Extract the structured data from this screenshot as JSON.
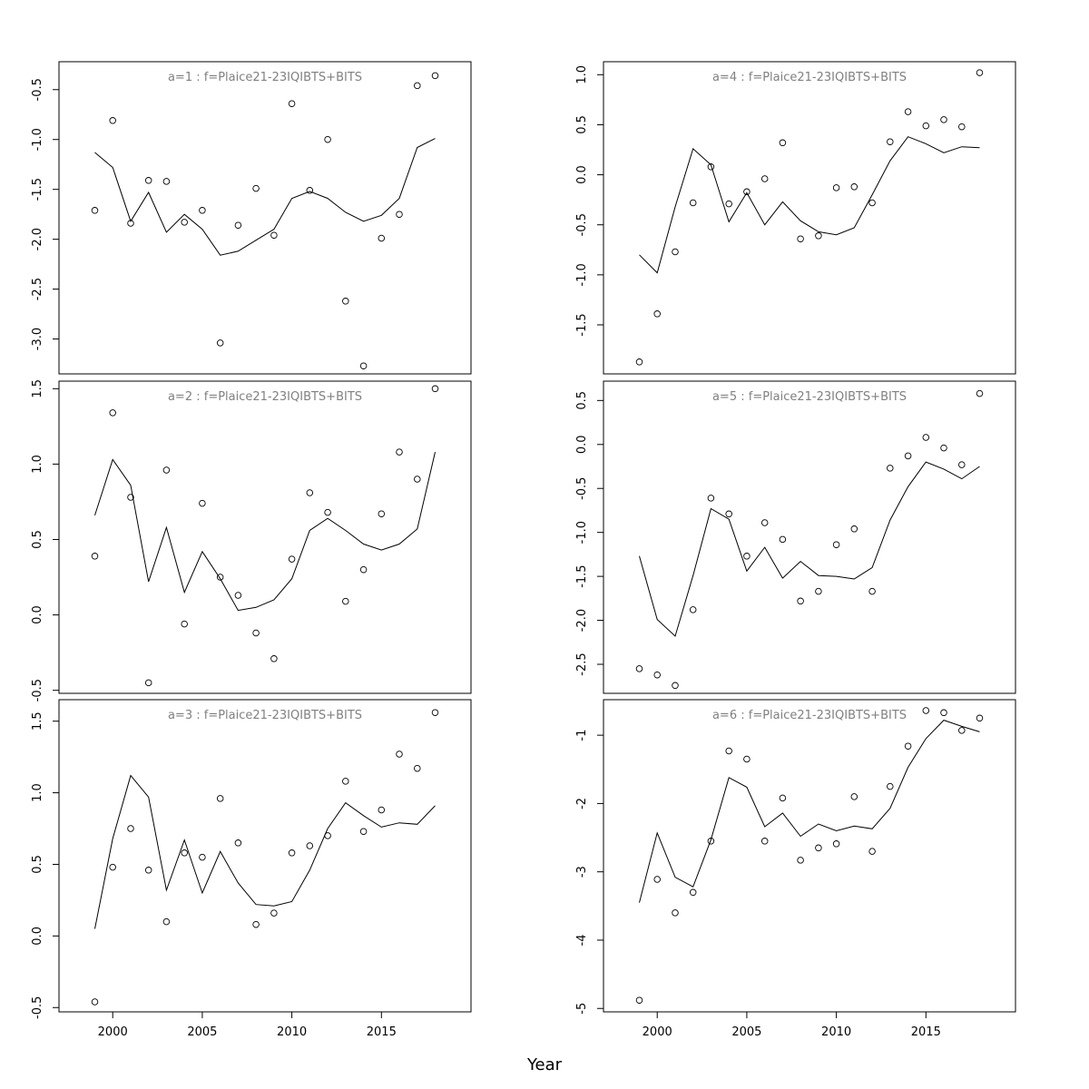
{
  "chart_data": {
    "type": "line+scatter",
    "xlabel": "Year",
    "x": [
      1999,
      2000,
      2001,
      2002,
      2003,
      2004,
      2005,
      2006,
      2007,
      2008,
      2009,
      2010,
      2011,
      2012,
      2013,
      2014,
      2015,
      2016,
      2017,
      2018
    ],
    "xlim": [
      1997,
      2020
    ],
    "xticks": [
      2000,
      2005,
      2010,
      2015
    ],
    "panels": [
      {
        "title": "a=1 : f=Plaice21-23IQIBTS+BITS",
        "ylim": [
          -3.35,
          -0.22
        ],
        "yticks": [
          -3.0,
          -2.5,
          -2.0,
          -1.5,
          -1.0,
          -0.5
        ],
        "ytick_labels": [
          "-3.0",
          "-2.5",
          "-2.0",
          "-1.5",
          "-1.0",
          "-0.5"
        ],
        "points": [
          -1.71,
          -0.81,
          -1.84,
          -1.41,
          -1.42,
          -1.83,
          -1.71,
          -3.04,
          -1.86,
          -1.49,
          -1.96,
          -0.64,
          -1.51,
          -1.0,
          -2.62,
          -3.27,
          -1.99,
          -1.75,
          -0.46,
          -0.36
        ],
        "line": [
          -1.13,
          -1.28,
          -1.82,
          -1.53,
          -1.93,
          -1.75,
          -1.9,
          -2.16,
          -2.12,
          -2.01,
          -1.9,
          -1.59,
          -1.52,
          -1.59,
          -1.73,
          -1.82,
          -1.76,
          -1.59,
          -1.08,
          -0.99
        ]
      },
      {
        "title": "a=2 : f=Plaice21-23IQIBTS+BITS",
        "ylim": [
          -0.52,
          1.55
        ],
        "yticks": [
          -0.5,
          0.0,
          0.5,
          1.0,
          1.5
        ],
        "ytick_labels": [
          "-0.5",
          "0.0",
          "0.5",
          "1.0",
          "1.5"
        ],
        "points": [
          0.39,
          1.34,
          0.78,
          -0.45,
          0.96,
          -0.06,
          0.74,
          0.25,
          0.13,
          -0.12,
          -0.29,
          0.37,
          0.81,
          0.68,
          0.09,
          0.3,
          0.67,
          1.08,
          0.9,
          1.5
        ],
        "line": [
          0.66,
          1.03,
          0.86,
          0.22,
          0.58,
          0.15,
          0.42,
          0.24,
          0.03,
          0.05,
          0.1,
          0.24,
          0.56,
          0.64,
          0.56,
          0.47,
          0.43,
          0.47,
          0.57,
          1.08
        ]
      },
      {
        "title": "a=3 : f=Plaice21-23IQIBTS+BITS",
        "ylim": [
          -0.53,
          1.65
        ],
        "yticks": [
          -0.5,
          0.0,
          0.5,
          1.0,
          1.5
        ],
        "ytick_labels": [
          "-0.5",
          "0.0",
          "0.5",
          "1.0",
          "1.5"
        ],
        "points": [
          -0.46,
          0.48,
          0.75,
          0.46,
          0.1,
          0.58,
          0.55,
          0.96,
          0.65,
          0.08,
          0.16,
          0.58,
          0.63,
          0.7,
          1.08,
          0.73,
          0.88,
          1.27,
          1.17,
          1.56
        ],
        "line": [
          0.05,
          0.68,
          1.12,
          0.97,
          0.32,
          0.67,
          0.3,
          0.59,
          0.37,
          0.22,
          0.21,
          0.24,
          0.46,
          0.75,
          0.93,
          0.84,
          0.76,
          0.79,
          0.78,
          0.91
        ]
      },
      {
        "title": "a=4 : f=Plaice21-23IQIBTS+BITS",
        "ylim": [
          -1.99,
          1.13
        ],
        "yticks": [
          -1.5,
          -1.0,
          -0.5,
          0.0,
          0.5,
          1.0
        ],
        "ytick_labels": [
          "-1.5",
          "-1.0",
          "-0.5",
          "0.0",
          "0.5",
          "1.0"
        ],
        "points": [
          -1.87,
          -1.39,
          -0.77,
          -0.28,
          0.08,
          -0.29,
          -0.17,
          -0.04,
          0.32,
          -0.64,
          -0.61,
          -0.13,
          -0.12,
          -0.28,
          0.33,
          0.63,
          0.49,
          0.55,
          0.48,
          1.02
        ],
        "line": [
          -0.8,
          -0.98,
          -0.32,
          0.26,
          0.1,
          -0.47,
          -0.18,
          -0.5,
          -0.27,
          -0.46,
          -0.57,
          -0.6,
          -0.53,
          -0.2,
          0.14,
          0.38,
          0.31,
          0.22,
          0.28,
          0.27
        ]
      },
      {
        "title": "a=5 : f=Plaice21-23IQIBTS+BITS",
        "ylim": [
          -2.83,
          0.72
        ],
        "yticks": [
          -2.5,
          -2.0,
          -1.5,
          -1.0,
          -0.5,
          0.0,
          0.5
        ],
        "ytick_labels": [
          "-2.5",
          "-2.0",
          "-1.5",
          "-1.0",
          "-0.5",
          "0.0",
          "0.5"
        ],
        "points": [
          -2.55,
          -2.62,
          -2.74,
          -1.88,
          -0.61,
          -0.79,
          -1.27,
          -0.89,
          -1.08,
          -1.78,
          -1.67,
          -1.14,
          -0.96,
          -1.67,
          -0.27,
          -0.13,
          0.08,
          -0.04,
          -0.23,
          0.58
        ],
        "line": [
          -1.27,
          -1.99,
          -2.18,
          -1.49,
          -0.73,
          -0.85,
          -1.44,
          -1.17,
          -1.52,
          -1.33,
          -1.49,
          -1.5,
          -1.53,
          -1.4,
          -0.86,
          -0.48,
          -0.2,
          -0.28,
          -0.39,
          -0.25
        ]
      },
      {
        "title": "a=6 : f=Plaice21-23IQIBTS+BITS",
        "ylim": [
          -5.05,
          -0.48
        ],
        "yticks": [
          -5,
          -4,
          -3,
          -2,
          -1
        ],
        "ytick_labels": [
          "-5",
          "-4",
          "-3",
          "-2",
          "-1"
        ],
        "points": [
          -4.88,
          -3.11,
          -3.6,
          -3.3,
          -2.55,
          -1.23,
          -1.35,
          -2.55,
          -1.92,
          -2.83,
          -2.65,
          -2.59,
          -1.9,
          -2.7,
          -1.75,
          -1.16,
          -0.64,
          -0.67,
          -0.93,
          -0.75
        ],
        "line": [
          -3.45,
          -2.43,
          -3.08,
          -3.22,
          -2.53,
          -1.62,
          -1.76,
          -2.34,
          -2.14,
          -2.48,
          -2.3,
          -2.4,
          -2.33,
          -2.37,
          -2.07,
          -1.47,
          -1.05,
          -0.78,
          -0.87,
          -0.95
        ]
      }
    ]
  }
}
